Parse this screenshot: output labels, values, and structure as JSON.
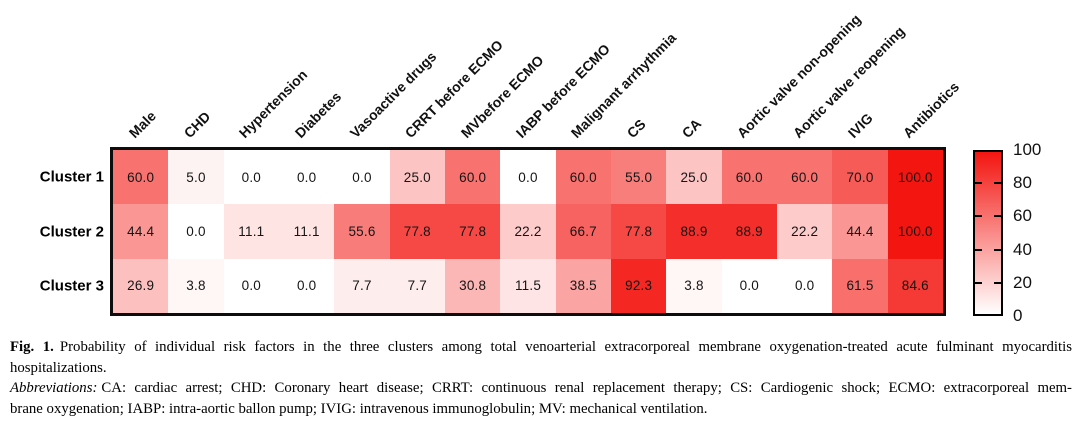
{
  "figure": {
    "heatmap": {
      "columns": [
        "Male",
        "CHD",
        "Hypertension",
        "Diabetes",
        "Vasoactive drugs",
        "CRRT before ECMO",
        "MVbefore ECMO",
        "IABP before ECMO",
        "Malignant arrhythmia",
        "CS",
        "CA",
        "Aortic valve non-opening",
        "Aortic valve reopening",
        "IVIG",
        "Antibiotics"
      ],
      "rows": [
        {
          "label": "Cluster 1",
          "values": [
            "60.0",
            "5.0",
            "0.0",
            "0.0",
            "0.0",
            "25.0",
            "60.0",
            "0.0",
            "60.0",
            "55.0",
            "25.0",
            "60.0",
            "60.0",
            "70.0",
            "100.0"
          ]
        },
        {
          "label": "Cluster 2",
          "values": [
            "44.4",
            "0.0",
            "11.1",
            "11.1",
            "55.6",
            "77.8",
            "77.8",
            "22.2",
            "66.7",
            "77.8",
            "88.9",
            "88.9",
            "22.2",
            "44.4",
            "100.0"
          ]
        },
        {
          "label": "Cluster 3",
          "values": [
            "26.9",
            "3.8",
            "0.0",
            "0.0",
            "7.7",
            "7.7",
            "30.8",
            "11.5",
            "38.5",
            "92.3",
            "3.8",
            "0.0",
            "0.0",
            "61.5",
            "84.6"
          ]
        }
      ]
    },
    "colorbar": {
      "ticks": [
        "100",
        "80",
        "60",
        "40",
        "20",
        "0"
      ],
      "tick_values": [
        100,
        80,
        60,
        40,
        20,
        0
      ],
      "min_color": "#ffffff",
      "max_color": "#f31510"
    },
    "caption": {
      "fig_label": "Fig. 1.",
      "line1_rest": "Probability of individual risk factors in the three clusters among total venoarterial extracorporeal membrane oxygenation-treated acute fulminant myocarditis",
      "line2": "hospitalizations.",
      "abbr_label": "Abbreviations:",
      "line3_rest": "CA: cardiac arrest; CHD: Coronary heart disease; CRRT: continuous renal replacement therapy; CS: Cardiogenic shock; ECMO: extracorporeal mem-",
      "line4": "brane oxygenation; IABP: intra-aortic ballon pump; IVIG: intravenous immunoglobulin; MV: mechanical ventilation."
    }
  },
  "chart_data": {
    "type": "heatmap",
    "title": "Probability of individual risk factors in the three clusters",
    "categories": [
      "Male",
      "CHD",
      "Hypertension",
      "Diabetes",
      "Vasoactive drugs",
      "CRRT before ECMO",
      "MVbefore ECMO",
      "IABP before ECMO",
      "Malignant arrhythmia",
      "CS",
      "CA",
      "Aortic valve non-opening",
      "Aortic valve reopening",
      "IVIG",
      "Antibiotics"
    ],
    "series": [
      {
        "name": "Cluster 1",
        "values": [
          60.0,
          5.0,
          0.0,
          0.0,
          0.0,
          25.0,
          60.0,
          0.0,
          60.0,
          55.0,
          25.0,
          60.0,
          60.0,
          70.0,
          100.0
        ]
      },
      {
        "name": "Cluster 2",
        "values": [
          44.4,
          0.0,
          11.1,
          11.1,
          55.6,
          77.8,
          77.8,
          22.2,
          66.7,
          77.8,
          88.9,
          88.9,
          22.2,
          44.4,
          100.0
        ]
      },
      {
        "name": "Cluster 3",
        "values": [
          26.9,
          3.8,
          0.0,
          0.0,
          7.7,
          7.7,
          30.8,
          11.5,
          38.5,
          92.3,
          3.8,
          0.0,
          0.0,
          61.5,
          84.6
        ]
      }
    ],
    "value_range": [
      0,
      100
    ],
    "colorbar_ticks": [
      0,
      20,
      40,
      60,
      80,
      100
    ],
    "colormap": {
      "min": "#ffffff",
      "max": "#f31510"
    },
    "legend_position": "right-colorbar",
    "grid": false
  }
}
